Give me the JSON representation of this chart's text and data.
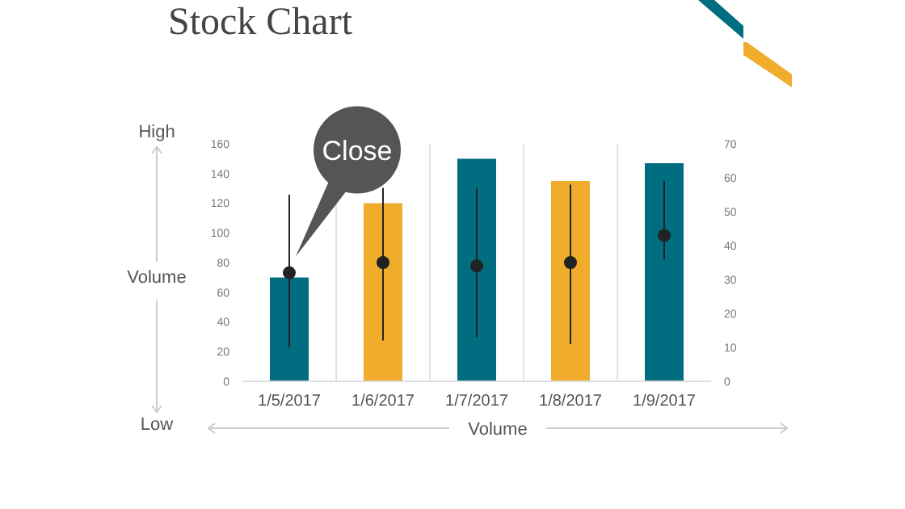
{
  "chart_data": {
    "type": "bar",
    "title": "Stock Chart",
    "xlabel": "Volume",
    "ylabel": "Volume",
    "categories": [
      "1/5/2017",
      "1/6/2017",
      "1/7/2017",
      "1/8/2017",
      "1/9/2017"
    ],
    "series": [
      {
        "colors": [
          "#006d80",
          "#f0ad2b",
          "#006d80",
          "#f0ad2b",
          "#006d80"
        ],
        "values": [
          70,
          120,
          150,
          135,
          147
        ]
      },
      {
        "type": "scatter",
        "axis": "y2",
        "color": "#222222",
        "values": [
          32,
          35,
          34,
          35,
          43
        ],
        "errors": [
          [
            10,
            55
          ],
          [
            12,
            57
          ],
          [
            13,
            57
          ],
          [
            11,
            58
          ],
          [
            36,
            59
          ]
        ]
      }
    ],
    "ylim": [
      0,
      160
    ],
    "yticks": [
      0,
      20,
      40,
      60,
      80,
      100,
      120,
      140,
      160
    ],
    "y2lim": [
      0,
      70
    ],
    "y2ticks": [
      0,
      10,
      20,
      30,
      40,
      50,
      60,
      70
    ],
    "grid": "x",
    "marker": "circle",
    "annotations": [
      "High",
      "Low",
      "Close"
    ]
  }
}
